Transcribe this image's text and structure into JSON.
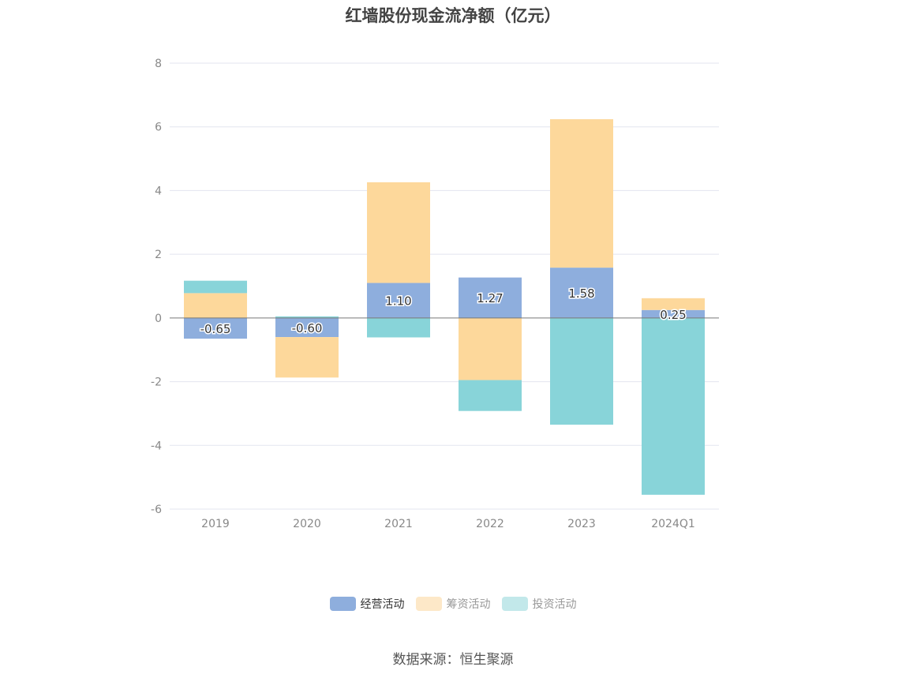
{
  "chart_data": {
    "type": "bar",
    "stacked": true,
    "title": "红墙股份现金流净额（亿元）",
    "categories": [
      "2019",
      "2020",
      "2021",
      "2022",
      "2023",
      "2024Q1"
    ],
    "series": [
      {
        "name": "经营活动",
        "color": "#8eaedd",
        "values": [
          -0.65,
          -0.6,
          1.1,
          1.27,
          1.58,
          0.25
        ]
      },
      {
        "name": "筹资活动",
        "color": "#fdd89b",
        "values": [
          0.78,
          -1.27,
          3.16,
          -1.95,
          4.66,
          0.37
        ]
      },
      {
        "name": "投资活动",
        "color": "#88d4d9",
        "values": [
          0.39,
          0.05,
          -0.61,
          -0.97,
          -3.35,
          -5.55
        ]
      }
    ],
    "data_labels": [
      "-0.65",
      "-0.60",
      "1.10",
      "1.27",
      "1.58",
      "0.25"
    ],
    "ylim": [
      -6,
      8
    ],
    "yticks": [
      "8",
      "6",
      "4",
      "2",
      "0",
      "-2",
      "-4",
      "-6"
    ],
    "grid": true,
    "legend_position": "bottom"
  },
  "legend": [
    {
      "label": "经营活动",
      "color": "#8eaedd"
    },
    {
      "label": "筹资活动",
      "color": "#fde8c8"
    },
    {
      "label": "投资活动",
      "color": "#c2e8ea"
    }
  ],
  "source": "数据来源：恒生聚源"
}
